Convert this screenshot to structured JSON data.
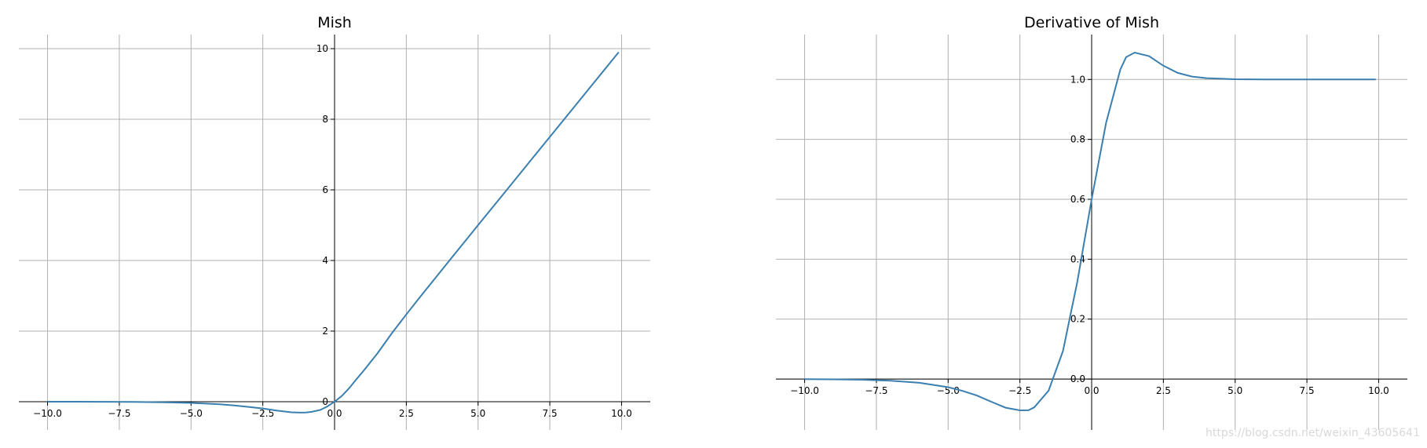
{
  "watermark": "https://blog.csdn.net/weixin_43605641",
  "chart_data": [
    {
      "type": "line",
      "title": "Mish",
      "xlabel": "",
      "ylabel": "",
      "xlim": [
        -11,
        11
      ],
      "ylim": [
        -0.8,
        10.4
      ],
      "grid": true,
      "x_ticks": [
        -10.0,
        -7.5,
        -5.0,
        -2.5,
        0.0,
        2.5,
        5.0,
        7.5,
        10.0
      ],
      "x_tick_labels": [
        "−10.0",
        "−7.5",
        "−5.0",
        "−2.5",
        "0.0",
        "2.5",
        "5.0",
        "7.5",
        "10.0"
      ],
      "y_ticks": [
        0,
        2,
        4,
        6,
        8,
        10
      ],
      "y_tick_labels": [
        "0",
        "2",
        "4",
        "6",
        "8",
        "10"
      ],
      "series": [
        {
          "color": "#3a7fb0",
          "x": [
            -10,
            -9,
            -8,
            -7,
            -6,
            -5,
            -4,
            -3.5,
            -3,
            -2.5,
            -2,
            -1.5,
            -1.2,
            -1,
            -0.8,
            -0.5,
            -0.25,
            0,
            0.25,
            0.5,
            0.75,
            1,
            1.5,
            2,
            2.5,
            3,
            4,
            5,
            6,
            7,
            8,
            9,
            9.9
          ],
          "y": [
            -0.0005,
            -0.0011,
            -0.0027,
            -0.0064,
            -0.0149,
            -0.0336,
            -0.0726,
            -0.1048,
            -0.1456,
            -0.1911,
            -0.2525,
            -0.2994,
            -0.3084,
            -0.3034,
            -0.2863,
            -0.2365,
            -0.1323,
            0,
            0.1602,
            0.3752,
            0.6254,
            0.8651,
            1.3752,
            1.944,
            2.4739,
            2.9865,
            3.9974,
            4.9996,
            5.9999,
            7.0,
            8.0,
            9.0,
            9.9
          ]
        }
      ]
    },
    {
      "type": "line",
      "title": "Derivative of Mish",
      "xlabel": "",
      "ylabel": "",
      "xlim": [
        -11,
        11
      ],
      "ylim": [
        -0.17,
        1.15
      ],
      "grid": true,
      "x_ticks": [
        -10.0,
        -7.5,
        -5.0,
        -2.5,
        0.0,
        2.5,
        5.0,
        7.5,
        10.0
      ],
      "x_tick_labels": [
        "−10.0",
        "−7.5",
        "−5.0",
        "−2.5",
        "0.0",
        "2.5",
        "5.0",
        "7.5",
        "10.0"
      ],
      "y_ticks": [
        0.0,
        0.2,
        0.4,
        0.6,
        0.8,
        1.0
      ],
      "y_tick_labels": [
        "0.0",
        "0.2",
        "0.4",
        "0.6",
        "0.8",
        "1.0"
      ],
      "series": [
        {
          "color": "#3a7fb0",
          "x": [
            -10,
            -9,
            -8,
            -7,
            -6,
            -5,
            -4.5,
            -4,
            -3.5,
            -3,
            -2.5,
            -2.2,
            -2,
            -1.5,
            -1,
            -0.5,
            0,
            0.5,
            1,
            1.2,
            1.5,
            2,
            2.5,
            3,
            3.5,
            4,
            5,
            6,
            7,
            8,
            9,
            9.9
          ],
          "y": [
            -0.0004,
            -0.001,
            -0.0024,
            -0.0057,
            -0.0127,
            -0.0272,
            -0.0396,
            -0.0551,
            -0.0756,
            -0.0956,
            -0.1046,
            -0.1043,
            -0.0945,
            -0.0389,
            0.0938,
            0.3241,
            0.6,
            0.8544,
            1.0332,
            1.0746,
            1.0897,
            1.0781,
            1.0457,
            1.0218,
            1.0097,
            1.0044,
            1.0007,
            1.0001,
            1.0,
            1.0,
            1.0,
            1.0
          ]
        }
      ]
    }
  ]
}
